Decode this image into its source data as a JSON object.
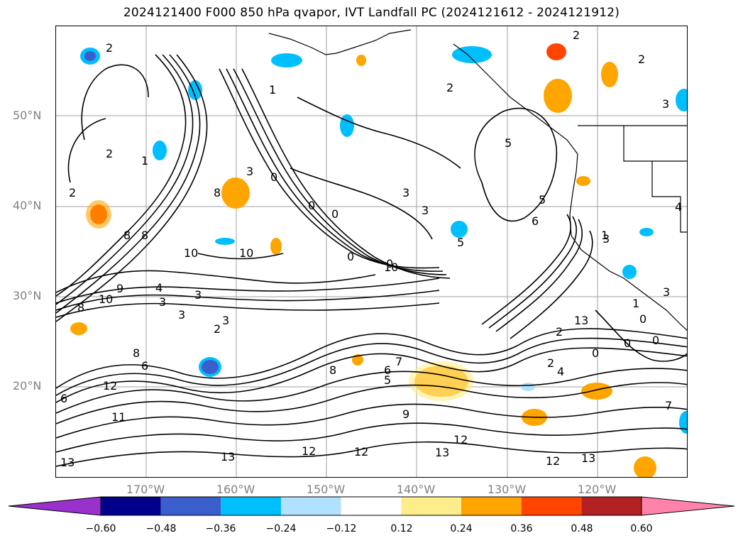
{
  "title": "2024121400 F000 850 hPa qvapor, IVT Landfall PC (2024121612 - 2024121912)",
  "map": {
    "lat_labels": [
      "50°N",
      "40°N",
      "30°N",
      "20°N"
    ],
    "lon_labels": [
      "170°W",
      "160°W",
      "150°W",
      "140°W",
      "130°W",
      "120°W"
    ],
    "grid_color": "#a0a0a0",
    "contour_color": "#000000",
    "contour_labels": [
      "2",
      "2",
      "2",
      "1",
      "1",
      "2",
      "2",
      "3",
      "0",
      "0",
      "0",
      "0",
      "0",
      "3",
      "3",
      "5",
      "5",
      "5",
      "6",
      "8",
      "8",
      "8",
      "10",
      "10",
      "10",
      "10",
      "9",
      "4",
      "3",
      "3",
      "3",
      "3",
      "2",
      "6",
      "8",
      "12",
      "11",
      "13",
      "13",
      "13",
      "12",
      "12",
      "12",
      "13",
      "8",
      "9",
      "7",
      "6",
      "5",
      "2",
      "4",
      "2",
      "0",
      "0",
      "0",
      "3",
      "7",
      "1",
      "0",
      "1",
      "4",
      "3",
      "3",
      "2",
      "8",
      "6",
      "12",
      "13"
    ]
  },
  "colorbar": {
    "extend": "both",
    "colors": [
      "#9932CC",
      "#00008B",
      "#3A5FCD",
      "#00BFFF",
      "#B0E2FF",
      "#FFFFFF",
      "#FFEC8B",
      "#FFA500",
      "#FF4500",
      "#B22222",
      "#FF82AB"
    ],
    "ticks": [
      "−0.60",
      "−0.48",
      "−0.36",
      "−0.24",
      "−0.12",
      "0.12",
      "0.24",
      "0.36",
      "0.48",
      "0.60"
    ]
  }
}
